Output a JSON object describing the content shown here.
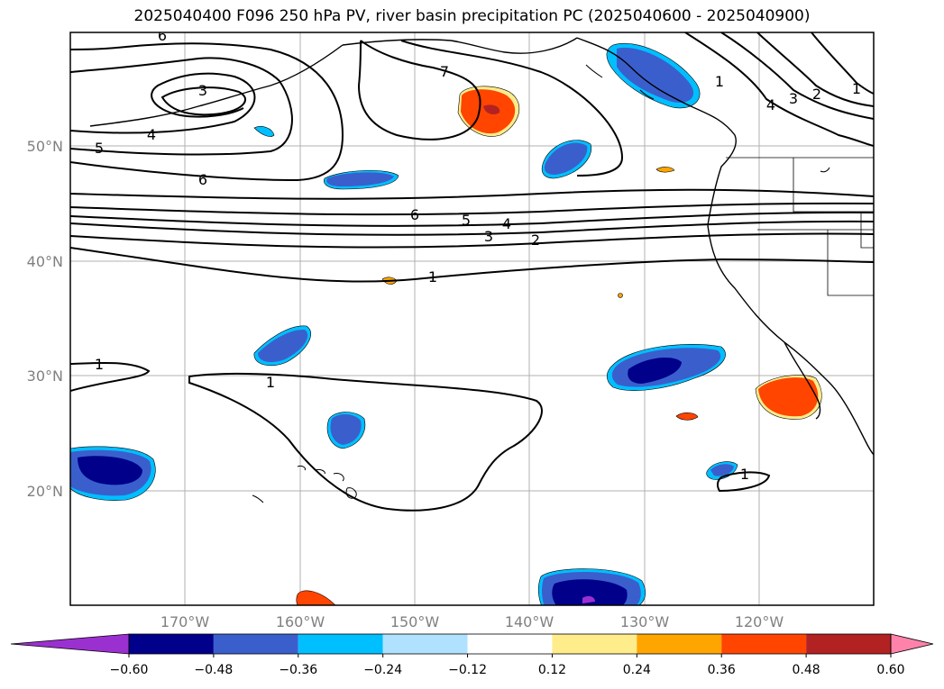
{
  "title": "2025040400 F096 250 hPa PV, river basin precipitation PC (2025040600 - 2025040900)",
  "lat_labels": [
    "50°N",
    "40°N",
    "30°N",
    "20°N"
  ],
  "lon_labels": [
    "170°W",
    "160°W",
    "150°W",
    "140°W",
    "130°W",
    "120°W"
  ],
  "pv_contour_labels": [
    "6",
    "3",
    "4",
    "5",
    "6",
    "7",
    "6",
    "5",
    "4",
    "3",
    "2",
    "1",
    "1",
    "1",
    "1",
    "4",
    "3",
    "2",
    "1",
    "1"
  ],
  "colorbar": {
    "tick_labels": [
      "−0.60",
      "−0.48",
      "−0.36",
      "−0.24",
      "−0.12",
      "0.12",
      "0.24",
      "0.36",
      "0.48",
      "0.60"
    ],
    "colors": [
      "#9b30d0",
      "#00008b",
      "#3a5fcd",
      "#00bfff",
      "#b0e2ff",
      "#ffffff",
      "#ffec8b",
      "#ffa500",
      "#ff4500",
      "#b22222",
      "#ff82ab"
    ]
  }
}
